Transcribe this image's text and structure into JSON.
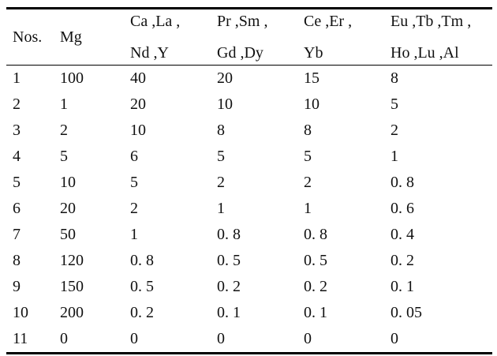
{
  "table": {
    "columns": [
      {
        "line1": "Nos."
      },
      {
        "line1": "Mg"
      },
      {
        "line1": "Ca ,La ,",
        "line2": "Nd ,Y"
      },
      {
        "line1": "Pr ,Sm ,",
        "line2": "Gd ,Dy"
      },
      {
        "line1": "Ce ,Er ,",
        "line2": "Yb"
      },
      {
        "line1": "Eu ,Tb ,Tm ,",
        "line2": "Ho ,Lu ,Al"
      }
    ],
    "rows": [
      [
        "1",
        "100",
        "40",
        "20",
        "15",
        "8"
      ],
      [
        "2",
        "1",
        "20",
        "10",
        "10",
        "5"
      ],
      [
        "3",
        "2",
        "10",
        "8",
        "8",
        "2"
      ],
      [
        "4",
        "5",
        "6",
        "5",
        "5",
        "1"
      ],
      [
        "5",
        "10",
        "5",
        "2",
        "2",
        "0. 8"
      ],
      [
        "6",
        "20",
        "2",
        "1",
        "1",
        "0. 6"
      ],
      [
        "7",
        "50",
        "1",
        "0. 8",
        "0. 8",
        "0. 4"
      ],
      [
        "8",
        "120",
        "0. 8",
        "0. 5",
        "0. 5",
        "0. 2"
      ],
      [
        "9",
        "150",
        "0. 5",
        "0. 2",
        "0. 2",
        "0. 1"
      ],
      [
        "10",
        "200",
        "0. 2",
        "0. 1",
        "0. 1",
        "0. 05"
      ],
      [
        "11",
        "0",
        "0",
        "0",
        "0",
        "0"
      ]
    ]
  }
}
